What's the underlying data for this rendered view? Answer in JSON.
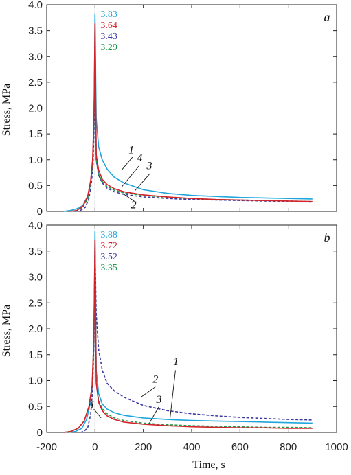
{
  "chart_data": {
    "type": "line",
    "xlabel": "Time, s",
    "ylabel": "Stress, MPa",
    "xlim": [
      -200,
      1000
    ],
    "ylim": [
      0,
      4.0
    ],
    "xticks": [
      "-200",
      "0",
      "200",
      "400",
      "600",
      "800",
      "1000"
    ],
    "yticks": [
      "0",
      "0.5",
      "1.0",
      "1.5",
      "2.0",
      "2.5",
      "3.0",
      "3.5",
      "4.0"
    ],
    "panels": [
      {
        "letter": "a",
        "peak_labels": [
          "3.83",
          "3.64",
          "3.43",
          "3.29"
        ],
        "curve_labels": [
          "1",
          "2",
          "3",
          "4"
        ],
        "series": [
          {
            "id": "1",
            "color": "#1ea6dc",
            "dash": "solid",
            "x": [
              -130,
              -100,
              -70,
              -50,
              -30,
              -15,
              -8,
              -3,
              0,
              5,
              15,
              30,
              50,
              80,
              120,
              200,
              300,
              400,
              500,
              600,
              700,
              800,
              900
            ],
            "y": [
              0,
              0.02,
              0.06,
              0.12,
              0.3,
              0.65,
              1.1,
              2.2,
              3.83,
              1.8,
              1.25,
              1.0,
              0.82,
              0.66,
              0.55,
              0.42,
              0.35,
              0.31,
              0.29,
              0.27,
              0.26,
              0.25,
              0.24
            ]
          },
          {
            "id": "2",
            "color": "#3a3aa0",
            "dash": "dashed",
            "x": [
              -80,
              -60,
              -40,
              -25,
              -15,
              -8,
              -3,
              0,
              5,
              15,
              30,
              50,
              80,
              120,
              200,
              300,
              400,
              500,
              600,
              700,
              800,
              900
            ],
            "y": [
              0,
              0.02,
              0.08,
              0.25,
              0.55,
              0.9,
              1.8,
              3.43,
              1.0,
              0.7,
              0.55,
              0.45,
              0.38,
              0.33,
              0.28,
              0.25,
              0.23,
              0.22,
              0.21,
              0.2,
              0.19,
              0.18
            ]
          },
          {
            "id": "3",
            "color": "#1f9a4a",
            "dash": "dashed",
            "x": [
              -100,
              -75,
              -50,
              -30,
              -18,
              -10,
              -4,
              0,
              5,
              15,
              30,
              50,
              80,
              120,
              200,
              300,
              400,
              500,
              600,
              700,
              800,
              900
            ],
            "y": [
              0,
              0.02,
              0.08,
              0.25,
              0.55,
              0.9,
              1.8,
              3.29,
              1.0,
              0.72,
              0.58,
              0.48,
              0.41,
              0.36,
              0.31,
              0.27,
              0.25,
              0.23,
              0.22,
              0.21,
              0.2,
              0.19
            ]
          },
          {
            "id": "4",
            "color": "#d4222a",
            "dash": "solid",
            "x": [
              -100,
              -75,
              -50,
              -30,
              -18,
              -10,
              -4,
              0,
              5,
              15,
              30,
              50,
              80,
              120,
              200,
              300,
              400,
              500,
              600,
              700,
              800,
              900
            ],
            "y": [
              0,
              0.02,
              0.1,
              0.3,
              0.6,
              1.0,
              1.9,
              3.64,
              1.1,
              0.8,
              0.62,
              0.52,
              0.44,
              0.38,
              0.32,
              0.28,
              0.25,
              0.23,
              0.22,
              0.21,
              0.2,
              0.19
            ]
          }
        ]
      },
      {
        "letter": "b",
        "peak_labels": [
          "3.88",
          "3.72",
          "3.52",
          "3.35"
        ],
        "curve_labels": [
          "1",
          "2",
          "3",
          "4"
        ],
        "series": [
          {
            "id": "1",
            "color": "#1ea6dc",
            "dash": "solid",
            "x": [
              -110,
              -80,
              -55,
              -35,
              -20,
              -10,
              -4,
              0,
              5,
              15,
              30,
              50,
              80,
              120,
              200,
              300,
              400,
              500,
              600,
              700,
              800,
              900
            ],
            "y": [
              0,
              0.02,
              0.08,
              0.25,
              0.55,
              0.95,
              1.9,
              3.88,
              1.2,
              0.75,
              0.55,
              0.45,
              0.38,
              0.33,
              0.28,
              0.25,
              0.23,
              0.22,
              0.21,
              0.2,
              0.19,
              0.18
            ]
          },
          {
            "id": "2",
            "color": "#3a3aa0",
            "dash": "dashed",
            "x": [
              -60,
              -45,
              -30,
              -18,
              -10,
              -4,
              0,
              5,
              15,
              30,
              50,
              80,
              120,
              200,
              300,
              400,
              500,
              600,
              700,
              800,
              900
            ],
            "y": [
              0,
              0.02,
              0.1,
              0.35,
              0.8,
              1.8,
              3.52,
              2.3,
              1.6,
              1.2,
              0.95,
              0.8,
              0.68,
              0.52,
              0.42,
              0.36,
              0.32,
              0.29,
              0.27,
              0.25,
              0.24
            ]
          },
          {
            "id": "3",
            "color": "#1f9a4a",
            "dash": "dashed",
            "x": [
              -130,
              -100,
              -70,
              -45,
              -25,
              -12,
              -5,
              0,
              5,
              15,
              30,
              50,
              80,
              120,
              200,
              300,
              400,
              500,
              600,
              700,
              800,
              900
            ],
            "y": [
              0,
              0.02,
              0.08,
              0.22,
              0.5,
              0.9,
              1.8,
              3.35,
              1.0,
              0.62,
              0.46,
              0.36,
              0.28,
              0.23,
              0.18,
              0.15,
              0.13,
              0.12,
              0.11,
              0.1,
              0.1,
              0.09
            ]
          },
          {
            "id": "4",
            "color": "#d4222a",
            "dash": "solid",
            "x": [
              -130,
              -100,
              -70,
              -45,
              -25,
              -12,
              -5,
              0,
              5,
              15,
              30,
              50,
              80,
              120,
              200,
              300,
              400,
              500,
              600,
              700,
              800,
              900
            ],
            "y": [
              0,
              0.02,
              0.08,
              0.22,
              0.5,
              0.9,
              1.8,
              3.72,
              0.95,
              0.58,
              0.42,
              0.32,
              0.25,
              0.2,
              0.16,
              0.13,
              0.11,
              0.1,
              0.09,
              0.09,
              0.08,
              0.08
            ]
          }
        ]
      }
    ]
  }
}
